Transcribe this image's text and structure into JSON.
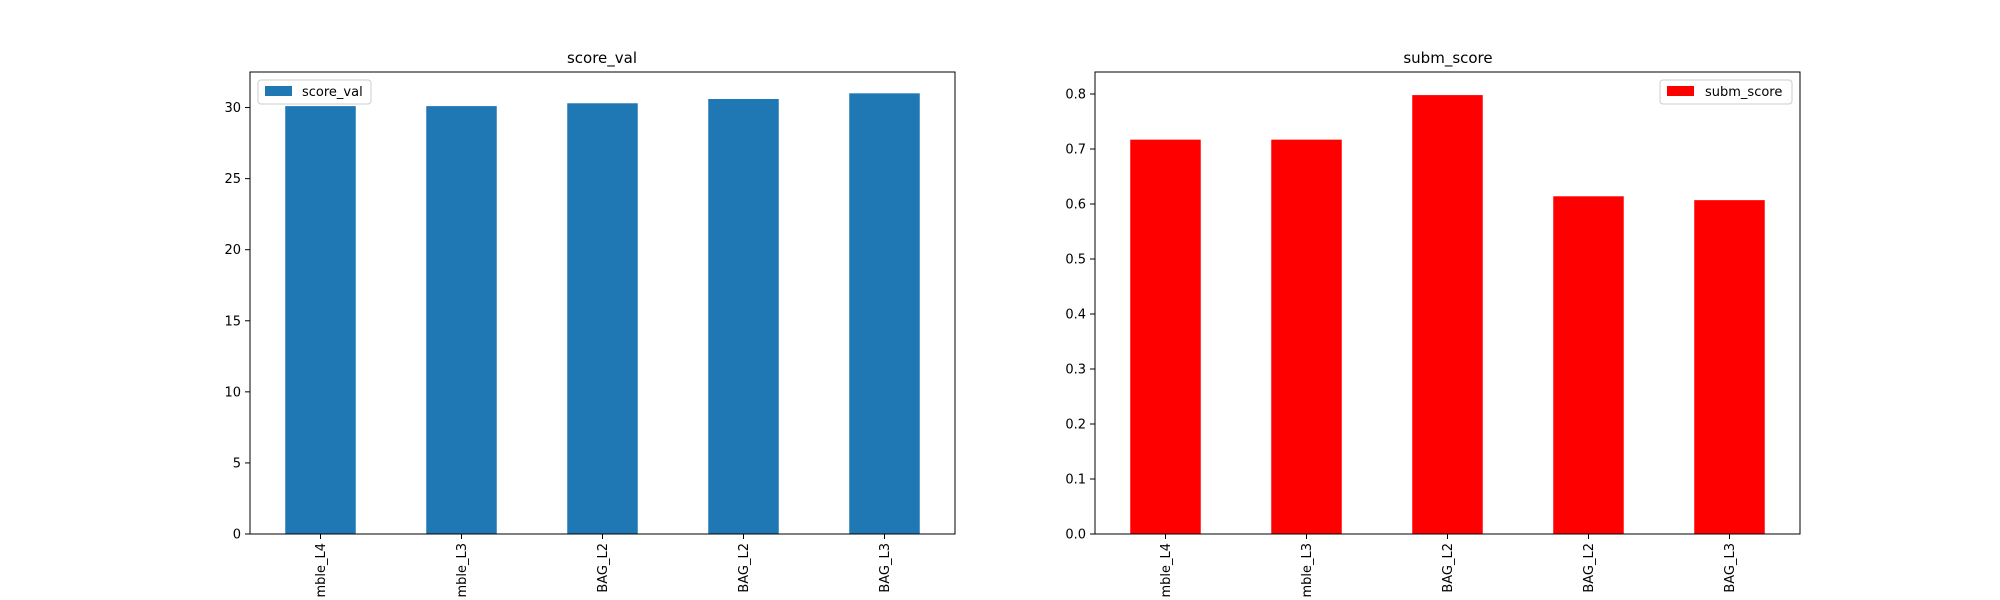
{
  "chart_data": [
    {
      "type": "bar",
      "title": "score_val",
      "categories": [
        "mble_L4",
        "mble_L3",
        "BAG_L2",
        "BAG_L2",
        "BAG_L3"
      ],
      "series": [
        {
          "name": "score_val",
          "values": [
            30.1,
            30.1,
            30.3,
            30.6,
            31.0
          ]
        }
      ],
      "ylim": [
        0,
        32.5
      ],
      "yticks": [
        "0",
        "5",
        "10",
        "15",
        "20",
        "25",
        "30"
      ],
      "xlabel": "",
      "ylabel": "",
      "grid": false,
      "legend": "top-left",
      "color": "#1f77b4"
    },
    {
      "type": "bar",
      "title": "subm_score",
      "categories": [
        "mble_L4",
        "mble_L3",
        "BAG_L2",
        "BAG_L2",
        "BAG_L3"
      ],
      "series": [
        {
          "name": "subm_score",
          "values": [
            0.717,
            0.717,
            0.798,
            0.614,
            0.607
          ]
        }
      ],
      "ylim": [
        0,
        0.84
      ],
      "yticks": [
        "0.0",
        "0.1",
        "0.2",
        "0.3",
        "0.4",
        "0.5",
        "0.6",
        "0.7",
        "0.8"
      ],
      "xlabel": "",
      "ylabel": "",
      "grid": false,
      "legend": "top-right",
      "color": "#ff0000"
    }
  ]
}
